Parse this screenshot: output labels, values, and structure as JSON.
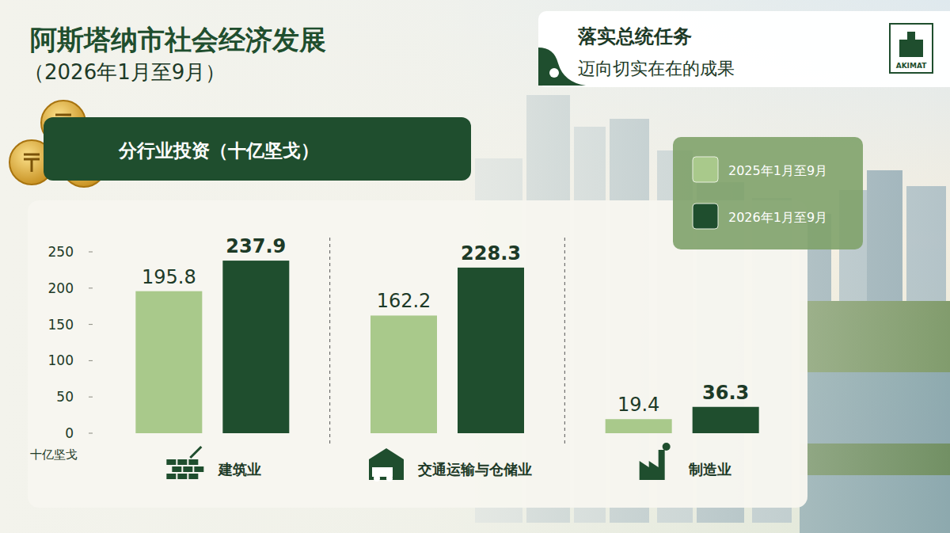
{
  "header": {
    "title": "阿斯塔纳市社会经济发展",
    "subtitle": "（2026年1月至9月）",
    "banner_title": "落实总统任务",
    "banner_text": "迈向切实在在的成果",
    "logo": "AKIMAT"
  },
  "chart_data": {
    "type": "bar",
    "title": "分行业投资（十亿坚戈）",
    "y_label": "十亿坚戈",
    "categories": [
      "建筑业",
      "交通运输与仓储业",
      "制造业"
    ],
    "series": [
      {
        "name": "2025年1月至9月",
        "color": "#a9c98b",
        "values": [
          195.8,
          162.2,
          19.4
        ]
      },
      {
        "name": "2026年1月至9月",
        "color": "#1f4e2e",
        "values": [
          237.9,
          228.3,
          36.3
        ]
      }
    ],
    "ylim": [
      0,
      250
    ],
    "yticks": [
      0,
      50,
      100,
      150,
      200,
      250
    ],
    "grid": false,
    "legend": "top-right",
    "data_labels": true
  }
}
